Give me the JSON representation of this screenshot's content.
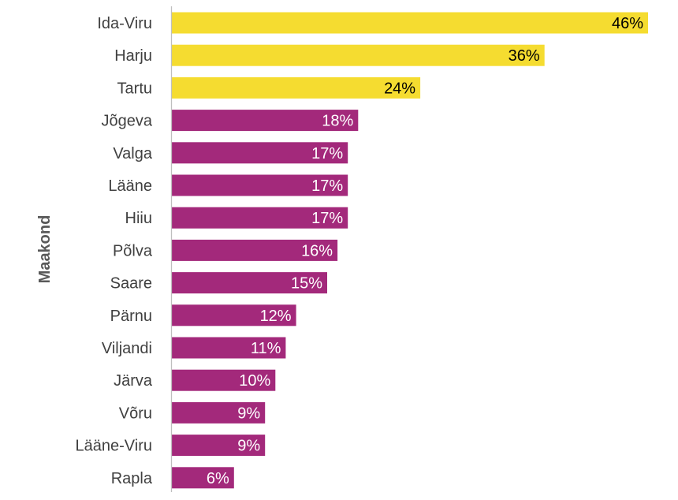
{
  "chart_data": {
    "type": "bar",
    "orientation": "horizontal",
    "ylabel": "Maakond",
    "xlim": [
      0,
      46
    ],
    "grid": false,
    "legend": "none",
    "categories": [
      "Ida-Viru",
      "Harju",
      "Tartu",
      "Jõgeva",
      "Valga",
      "Lääne",
      "Hiiu",
      "Põlva",
      "Saare",
      "Pärnu",
      "Viljandi",
      "Järva",
      "Võru",
      "Lääne-Viru",
      "Rapla"
    ],
    "values": [
      46,
      36,
      24,
      18,
      17,
      17,
      17,
      16,
      15,
      12,
      11,
      10,
      9,
      9,
      6
    ],
    "value_labels": [
      "46%",
      "36%",
      "24%",
      "18%",
      "17%",
      "17%",
      "17%",
      "16%",
      "15%",
      "12%",
      "11%",
      "10%",
      "9%",
      "9%",
      "6%"
    ],
    "bar_colors": [
      "#F5DC30",
      "#F5DC30",
      "#F5DC30",
      "#A3297B",
      "#A3297B",
      "#A3297B",
      "#A3297B",
      "#A3297B",
      "#A3297B",
      "#A3297B",
      "#A3297B",
      "#A3297B",
      "#A3297B",
      "#A3297B",
      "#A3297B"
    ],
    "label_colors": [
      "#000000",
      "#000000",
      "#000000",
      "#FFFFFF",
      "#FFFFFF",
      "#FFFFFF",
      "#FFFFFF",
      "#FFFFFF",
      "#FFFFFF",
      "#FFFFFF",
      "#FFFFFF",
      "#FFFFFF",
      "#FFFFFF",
      "#FFFFFF",
      "#FFFFFF"
    ],
    "axis_color": "#BFBFBF"
  }
}
